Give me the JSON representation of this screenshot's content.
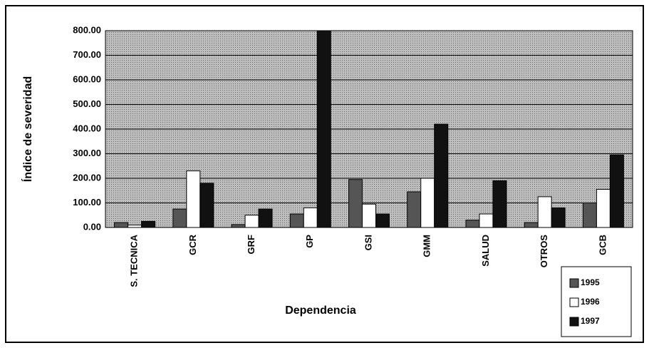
{
  "chart_data": {
    "type": "bar",
    "x_label": "Dependencia",
    "y_label": "Índice de severidad",
    "categories": [
      "S. TECNICA",
      "GCR",
      "GRF",
      "GP",
      "GSI",
      "GMM",
      "SALUD",
      "OTROS",
      "GCB"
    ],
    "series": [
      {
        "name": "1995",
        "color": "#555555",
        "values": [
          20,
          75,
          12,
          55,
          195,
          145,
          30,
          20,
          100
        ]
      },
      {
        "name": "1996",
        "color": "#ffffff",
        "values": [
          10,
          230,
          50,
          80,
          95,
          200,
          55,
          125,
          155
        ]
      },
      {
        "name": "1997",
        "color": "#111111",
        "values": [
          25,
          180,
          75,
          800,
          55,
          420,
          190,
          80,
          295
        ]
      }
    ],
    "ylim": [
      0,
      800
    ],
    "yticks": [
      {
        "value": 0,
        "label": "0.00"
      },
      {
        "value": 100,
        "label": "100.00"
      },
      {
        "value": 200,
        "label": "200.00"
      },
      {
        "value": 300,
        "label": "300.00"
      },
      {
        "value": 400,
        "label": "400.00"
      },
      {
        "value": 500,
        "label": "500.00"
      },
      {
        "value": 600,
        "label": "600.00"
      },
      {
        "value": 700,
        "label": "700.00"
      },
      {
        "value": 800,
        "label": "800.00"
      }
    ],
    "grid": true
  }
}
